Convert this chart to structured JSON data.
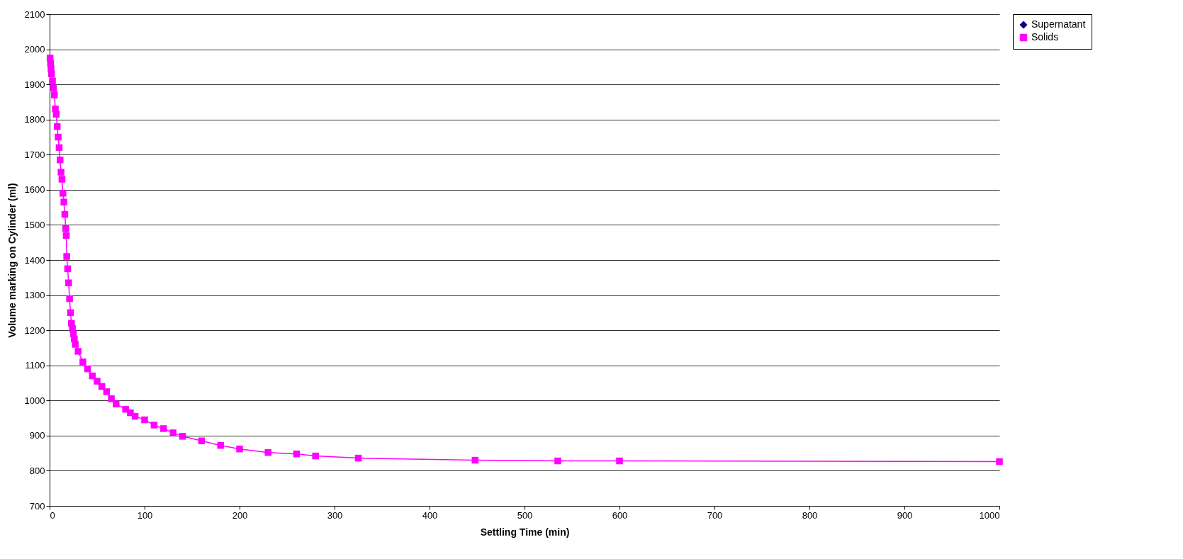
{
  "chart_data": {
    "type": "line",
    "xlabel": "Settling Time (min)",
    "ylabel": "Volume marking on Cylinder (ml)",
    "x": [
      0.5,
      1,
      1.5,
      2,
      3,
      4,
      5,
      6,
      7,
      8,
      9,
      10,
      11,
      12,
      13,
      14,
      15,
      16,
      17,
      17.5,
      18,
      19,
      20,
      21,
      22,
      23,
      24,
      25,
      26,
      27,
      30,
      35,
      40,
      45,
      50,
      55,
      60,
      65,
      70,
      80,
      85,
      90,
      100,
      110,
      120,
      130,
      140,
      160,
      180,
      200,
      230,
      260,
      280,
      325,
      448,
      535,
      600,
      1000
    ],
    "series": [
      {
        "name": "Supernatant",
        "color": "#000080",
        "marker": "diamond",
        "values": [
          null,
          null,
          null,
          null,
          null,
          null,
          null,
          null,
          null,
          null,
          null,
          null,
          null,
          null,
          null,
          null,
          null,
          null,
          null,
          null,
          null,
          null,
          null,
          null,
          null,
          null,
          null,
          null,
          null,
          null,
          null,
          null,
          null,
          null,
          null,
          null,
          null,
          null,
          null,
          null,
          null,
          null,
          null,
          null,
          null,
          null,
          null,
          null,
          null,
          null,
          null,
          null,
          null,
          null,
          null,
          null,
          null,
          null
        ]
      },
      {
        "name": "Solids",
        "color": "#ff00ff",
        "marker": "square",
        "values": [
          1975,
          1960,
          1945,
          1930,
          1910,
          1890,
          1870,
          1830,
          1815,
          1780,
          1750,
          1720,
          1685,
          1650,
          1630,
          1590,
          1565,
          1530,
          1490,
          1470,
          1410,
          1375,
          1335,
          1290,
          1250,
          1220,
          1205,
          1190,
          1175,
          1160,
          1140,
          1110,
          1090,
          1070,
          1055,
          1040,
          1025,
          1005,
          990,
          975,
          965,
          955,
          945,
          930,
          920,
          908,
          898,
          885,
          872,
          862,
          852,
          848,
          842,
          836,
          830,
          828,
          828,
          826
        ]
      }
    ],
    "xlim": [
      0,
      1000
    ],
    "xticks": [
      0,
      100,
      200,
      300,
      400,
      500,
      600,
      700,
      800,
      900,
      1000
    ],
    "ylim": [
      700,
      2100
    ],
    "yticks": [
      700,
      800,
      900,
      1000,
      1100,
      1200,
      1300,
      1400,
      1500,
      1600,
      1700,
      1800,
      1900,
      2000,
      2100
    ],
    "grid": "y",
    "legend": "right",
    "line_style": "solid"
  }
}
